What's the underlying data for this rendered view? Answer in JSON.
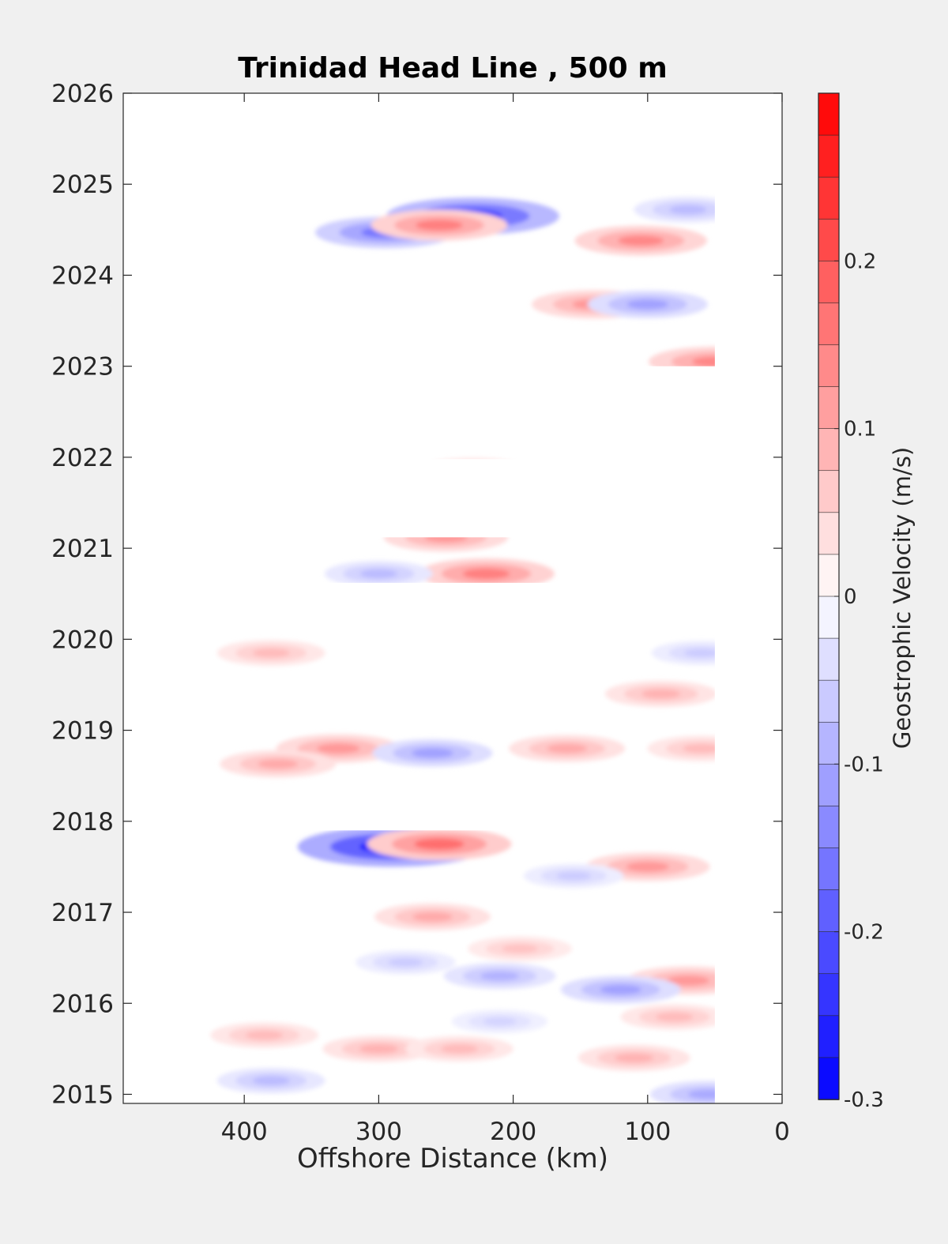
{
  "chart_data": {
    "type": "heatmap",
    "title": "Trinidad Head Line , 500 m",
    "xlabel": "Offshore Distance (km)",
    "ylabel": "",
    "xlim": [
      490,
      0
    ],
    "ylim": [
      2014.9,
      2026
    ],
    "x_reversed": true,
    "xticks": [
      "400",
      "300",
      "200",
      "100",
      "0"
    ],
    "xtick_values": [
      400,
      300,
      200,
      100,
      0
    ],
    "yticks": [
      "2015",
      "2016",
      "2017",
      "2018",
      "2019",
      "2020",
      "2021",
      "2022",
      "2023",
      "2024",
      "2025",
      "2026"
    ],
    "ytick_values": [
      2015,
      2016,
      2017,
      2018,
      2019,
      2020,
      2021,
      2022,
      2023,
      2024,
      2025,
      2026
    ],
    "grid": false,
    "colorbar": {
      "label": "Geostrophic Velocity (m/s)",
      "range": [
        -0.3,
        0.3
      ],
      "step": 0.025,
      "ticks": [
        "0.2",
        "0.1",
        "0",
        "-0.1",
        "-0.2",
        "-0.3"
      ],
      "tick_values": [
        0.2,
        0.1,
        0,
        -0.1,
        -0.2,
        -0.3
      ],
      "colormap": "blue-white-red",
      "min_color": "#0000ff",
      "max_color": "#ff0000"
    },
    "data_extent_x": [
      490,
      50
    ],
    "data_gaps_years": [
      [
        2020.3,
        2020.62
      ],
      [
        2021.12,
        2021.98
      ],
      [
        2022.2,
        2023.0
      ],
      [
        2025.3,
        2026.0
      ],
      [
        2017.9,
        2018.25
      ]
    ],
    "features": [
      {
        "x": 290,
        "y": 2017.72,
        "value": -0.28
      },
      {
        "x": 255,
        "y": 2017.75,
        "value": 0.17
      },
      {
        "x": 230,
        "y": 2024.65,
        "value": -0.24
      },
      {
        "x": 295,
        "y": 2024.47,
        "value": -0.16
      },
      {
        "x": 255,
        "y": 2024.55,
        "value": 0.15
      },
      {
        "x": 105,
        "y": 2024.38,
        "value": 0.14
      },
      {
        "x": 140,
        "y": 2023.68,
        "value": 0.12
      },
      {
        "x": 100,
        "y": 2023.68,
        "value": -0.11
      },
      {
        "x": 70,
        "y": 2024.72,
        "value": -0.08
      },
      {
        "x": 220,
        "y": 2020.72,
        "value": 0.15
      },
      {
        "x": 300,
        "y": 2020.72,
        "value": -0.08
      },
      {
        "x": 250,
        "y": 2021.12,
        "value": 0.12
      },
      {
        "x": 230,
        "y": 2021.85,
        "value": 0.08
      },
      {
        "x": 50,
        "y": 2023.05,
        "value": 0.14
      },
      {
        "x": 330,
        "y": 2018.8,
        "value": 0.12
      },
      {
        "x": 260,
        "y": 2018.75,
        "value": -0.11
      },
      {
        "x": 160,
        "y": 2018.8,
        "value": 0.1
      },
      {
        "x": 375,
        "y": 2018.63,
        "value": 0.1
      },
      {
        "x": 60,
        "y": 2018.8,
        "value": 0.08
      },
      {
        "x": 90,
        "y": 2019.4,
        "value": 0.09
      },
      {
        "x": 380,
        "y": 2019.85,
        "value": 0.08
      },
      {
        "x": 60,
        "y": 2019.85,
        "value": -0.06
      },
      {
        "x": 100,
        "y": 2017.5,
        "value": 0.12
      },
      {
        "x": 155,
        "y": 2017.4,
        "value": -0.06
      },
      {
        "x": 260,
        "y": 2016.95,
        "value": 0.1
      },
      {
        "x": 70,
        "y": 2016.25,
        "value": 0.12
      },
      {
        "x": 120,
        "y": 2016.15,
        "value": -0.11
      },
      {
        "x": 210,
        "y": 2016.3,
        "value": -0.09
      },
      {
        "x": 280,
        "y": 2016.45,
        "value": -0.06
      },
      {
        "x": 195,
        "y": 2016.6,
        "value": 0.07
      },
      {
        "x": 300,
        "y": 2015.5,
        "value": 0.09
      },
      {
        "x": 240,
        "y": 2015.5,
        "value": 0.08
      },
      {
        "x": 385,
        "y": 2015.65,
        "value": 0.08
      },
      {
        "x": 110,
        "y": 2015.4,
        "value": 0.09
      },
      {
        "x": 380,
        "y": 2015.15,
        "value": -0.08
      },
      {
        "x": 55,
        "y": 2015.0,
        "value": -0.1
      },
      {
        "x": 80,
        "y": 2015.85,
        "value": 0.08
      },
      {
        "x": 210,
        "y": 2015.8,
        "value": -0.05
      }
    ]
  }
}
